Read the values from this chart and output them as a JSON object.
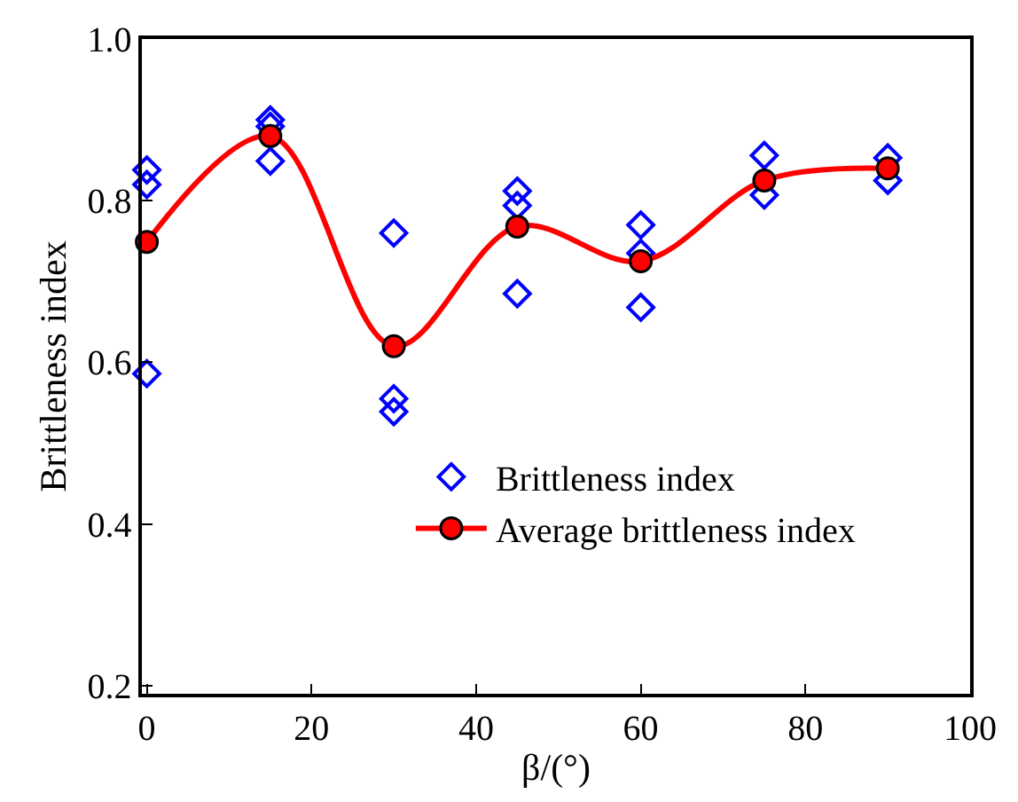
{
  "chart_data": {
    "type": "scatter",
    "xlabel": "β/(°)",
    "ylabel": "Brittleness index",
    "xlim": [
      -0.6,
      100
    ],
    "xticks": [
      0,
      20,
      40,
      60,
      80,
      100
    ],
    "ylim": [
      0.19,
      1.0
    ],
    "yticks": [
      0.2,
      0.4,
      0.6,
      0.8,
      {
        "value": 1.0,
        "label": "1.0"
      }
    ],
    "legend": "bottom",
    "series": [
      {
        "name": "Brittleness index",
        "marker": "diamond",
        "color": "#0000ff",
        "x": [
          0,
          0,
          0,
          15,
          15,
          15,
          30,
          30,
          30,
          45,
          45,
          45,
          60,
          60,
          60,
          75,
          75,
          90,
          90
        ],
        "values": [
          0.838,
          0.82,
          0.586,
          0.9,
          0.892,
          0.849,
          0.76,
          0.555,
          0.539,
          0.812,
          0.794,
          0.685,
          0.77,
          0.735,
          0.668,
          0.856,
          0.807,
          0.853,
          0.825
        ]
      },
      {
        "name": "Average brittleness index",
        "type": "line",
        "marker": "circle",
        "line_style": "solid",
        "color": "#ff0000",
        "x": [
          0,
          15,
          30,
          45,
          60,
          75,
          90
        ],
        "values": [
          0.749,
          0.88,
          0.62,
          0.768,
          0.725,
          0.825,
          0.84
        ]
      }
    ]
  }
}
